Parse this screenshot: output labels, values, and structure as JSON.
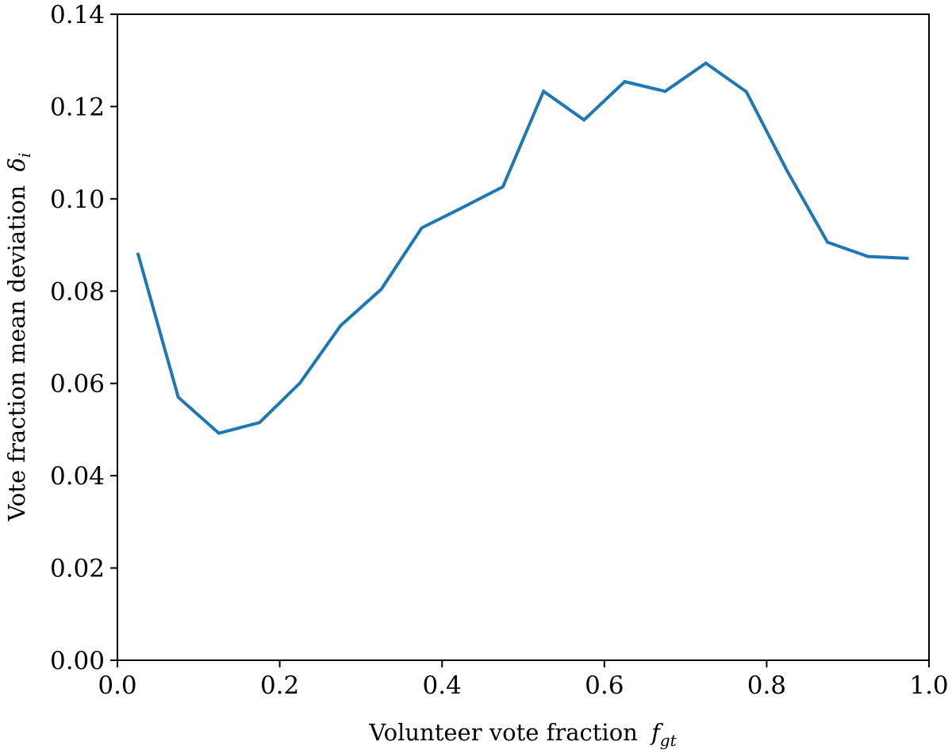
{
  "chart_data": {
    "type": "line",
    "title": "",
    "xlabel": {
      "text": "Volunteer vote fraction",
      "math": "f",
      "math_sub": "gt"
    },
    "ylabel": {
      "text": "Vote fraction mean deviation",
      "math": "δ",
      "math_sub": "i"
    },
    "xlim": [
      0.0,
      1.0
    ],
    "ylim": [
      0.0,
      0.14
    ],
    "xticks": [
      0.0,
      0.2,
      0.4,
      0.6,
      0.8,
      1.0
    ],
    "xtick_labels": [
      "0.0",
      "0.2",
      "0.4",
      "0.6",
      "0.8",
      "1.0"
    ],
    "yticks": [
      0.0,
      0.02,
      0.04,
      0.06,
      0.08,
      0.1,
      0.12,
      0.14
    ],
    "ytick_labels": [
      "0.00",
      "0.02",
      "0.04",
      "0.06",
      "0.08",
      "0.10",
      "0.12",
      "0.14"
    ],
    "grid": false,
    "legend": "none",
    "series": [
      {
        "color": "#1f77b4",
        "x": [
          0.025,
          0.075,
          0.125,
          0.175,
          0.225,
          0.275,
          0.325,
          0.375,
          0.425,
          0.475,
          0.525,
          0.575,
          0.625,
          0.675,
          0.725,
          0.775,
          0.825,
          0.875,
          0.925,
          0.975
        ],
        "y": [
          0.0883,
          0.057,
          0.0492,
          0.0515,
          0.0601,
          0.0725,
          0.0804,
          0.0937,
          0.0981,
          0.1026,
          0.1233,
          0.1171,
          0.1254,
          0.1233,
          0.1294,
          0.1232,
          0.1061,
          0.0906,
          0.0875,
          0.0871
        ]
      }
    ]
  }
}
